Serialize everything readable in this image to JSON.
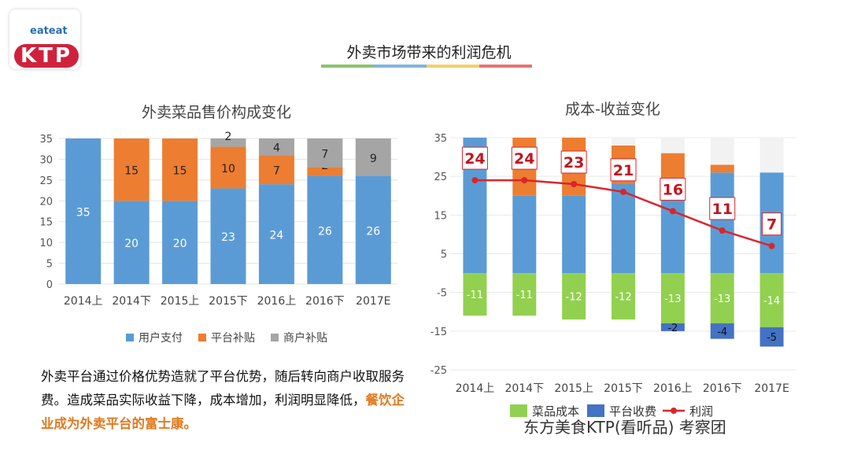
{
  "logo": {
    "text_top": "eateat",
    "text_main": "KTP"
  },
  "header": {
    "title": "外卖市场带来的利润危机",
    "accent_colors": [
      "#8dc26f",
      "#7fb6dc",
      "#f2d06b",
      "#e57373"
    ]
  },
  "description": {
    "text": "外卖平台通过价格优势造就了平台优势，随后转向商户收取服务费。造成菜品实际收益下降，成本增加，利润明显降低，",
    "highlight": "餐饮企业成为外卖平台的富士康。"
  },
  "footer": {
    "text": "东方美食KTP(看听品) 考察团"
  },
  "chart_data": [
    {
      "type": "bar",
      "stacked": true,
      "title": "外卖菜品售价构成变化",
      "categories": [
        "2014上",
        "2014下",
        "2015上",
        "2015下",
        "2016上",
        "2016下",
        "2017E"
      ],
      "ylim": [
        0,
        35
      ],
      "yticks": [
        0,
        5,
        10,
        15,
        20,
        25,
        30,
        35
      ],
      "legend": "bottom",
      "grid": true,
      "series": [
        {
          "name": "用户支付",
          "color": "#5b9bd5",
          "values": [
            35,
            20,
            20,
            23,
            24,
            26,
            26
          ]
        },
        {
          "name": "平台补贴",
          "color": "#ed7d31",
          "values": [
            0,
            15,
            15,
            10,
            7,
            2,
            0
          ]
        },
        {
          "name": "商户补贴",
          "color": "#a5a5a5",
          "values": [
            0,
            0,
            0,
            2,
            4,
            7,
            9
          ]
        }
      ]
    },
    {
      "type": "bar",
      "stacked": true,
      "title": "成本-收益变化",
      "categories": [
        "2014上",
        "2014下",
        "2015上",
        "2015下",
        "2016上",
        "2016下",
        "2017E"
      ],
      "ylim": [
        -25,
        35
      ],
      "yticks": [
        35,
        25,
        15,
        5,
        -5,
        -15,
        -25
      ],
      "legend": "bottom",
      "grid": true,
      "series": [
        {
          "name": "用户支付",
          "color": "#5b9bd5",
          "values": [
            35,
            20,
            20,
            23,
            24,
            26,
            26
          ],
          "legend": false
        },
        {
          "name": "平台补贴",
          "color": "#ed7d31",
          "values": [
            0,
            15,
            15,
            10,
            7,
            2,
            0
          ],
          "legend": false
        },
        {
          "name": "商户补贴",
          "color": "#f2f2f2",
          "values": [
            0,
            0,
            0,
            2,
            4,
            7,
            9
          ],
          "legend": false
        },
        {
          "name": "菜品成本",
          "color": "#92d050",
          "values": [
            -11,
            -11,
            -12,
            -12,
            -13,
            -13,
            -14
          ]
        },
        {
          "name": "平台收费",
          "color": "#4472c4",
          "values": [
            0,
            0,
            0,
            0,
            -2,
            -4,
            -5
          ]
        },
        {
          "name": "利润",
          "type": "line",
          "color": "#d9262b",
          "values": [
            24,
            24,
            23,
            21,
            16,
            11,
            7
          ]
        }
      ]
    }
  ]
}
